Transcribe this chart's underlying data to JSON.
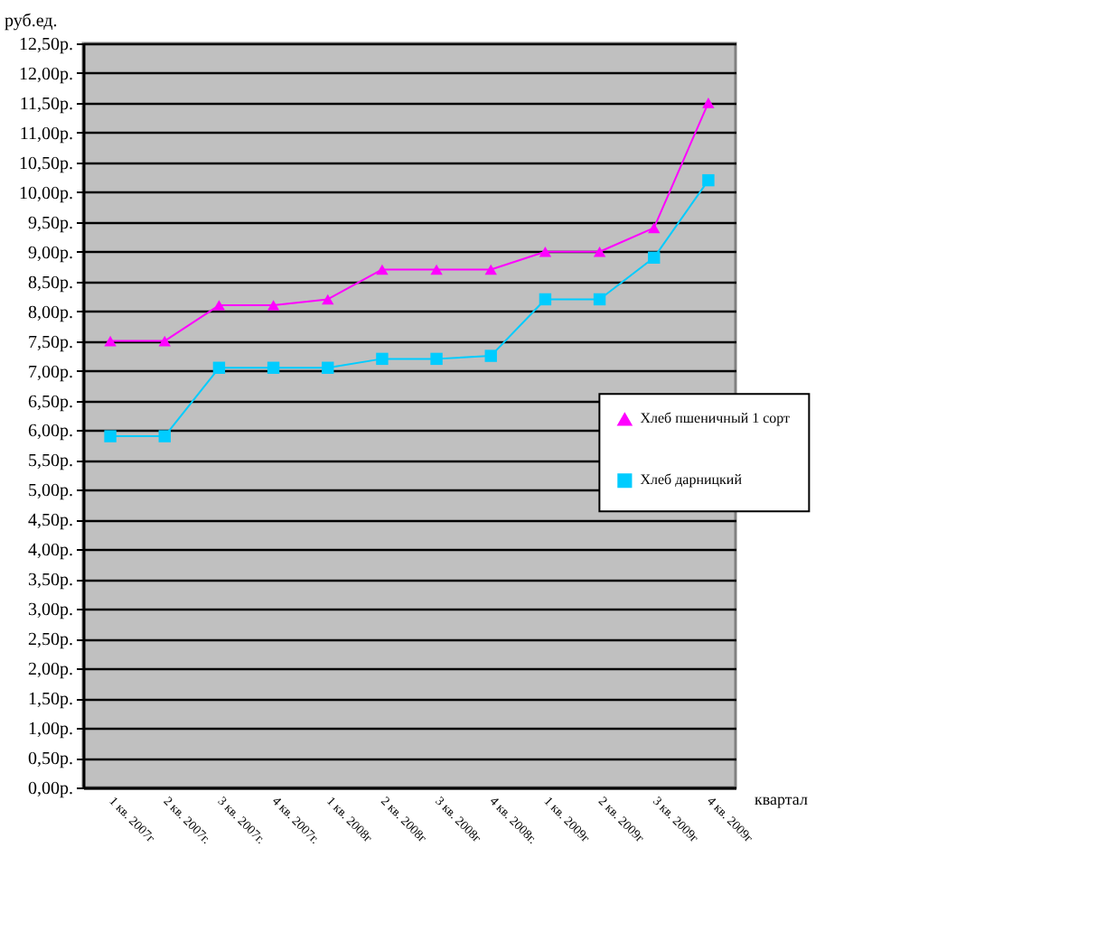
{
  "chart_data": {
    "type": "line",
    "xlabel": "квартал",
    "ylabel": "руб.ед.",
    "categories": [
      "1 кв. 2007г",
      "2 кв. 2007г.",
      "3 кв. 2007г.",
      "4 кв. 2007г.",
      "1 кв. 2008г",
      "2 кв. 2008г",
      "3 кв. 2008г",
      "4 кв. 2008г.",
      "1 кв. 2009г",
      "2 кв. 2009г",
      "3 кв. 2009г",
      "4 кв. 2009г"
    ],
    "series": [
      {
        "name": "Хлеб пшеничный 1 сорт",
        "color": "#ff00ff",
        "marker": "triangle",
        "values": [
          7.5,
          7.5,
          8.1,
          8.1,
          8.2,
          8.7,
          8.7,
          8.7,
          9.0,
          9.0,
          9.4,
          11.5
        ]
      },
      {
        "name": "Хлеб дарницкий",
        "color": "#00ccff",
        "marker": "square",
        "values": [
          5.9,
          5.9,
          7.05,
          7.05,
          7.05,
          7.2,
          7.2,
          7.25,
          8.2,
          8.2,
          8.9,
          10.2
        ]
      }
    ],
    "ylim": [
      0,
      12.5
    ],
    "yticks": [
      {
        "value": 0,
        "label": "0,00р."
      },
      {
        "value": 0.5,
        "label": "0,50р."
      },
      {
        "value": 1,
        "label": "1,00р."
      },
      {
        "value": 1.5,
        "label": "1,50р."
      },
      {
        "value": 2,
        "label": "2,00р."
      },
      {
        "value": 2.5,
        "label": "2,50р."
      },
      {
        "value": 3,
        "label": "3,00р."
      },
      {
        "value": 3.5,
        "label": "3,50р."
      },
      {
        "value": 4,
        "label": "4,00р."
      },
      {
        "value": 4.5,
        "label": "4,50р."
      },
      {
        "value": 5,
        "label": "5,00р."
      },
      {
        "value": 5.5,
        "label": "5,50р."
      },
      {
        "value": 6,
        "label": "6,00р."
      },
      {
        "value": 6.5,
        "label": "6,50р."
      },
      {
        "value": 7,
        "label": "7,00р."
      },
      {
        "value": 7.5,
        "label": "7,50р."
      },
      {
        "value": 8,
        "label": "8,00р."
      },
      {
        "value": 8.5,
        "label": "8,50р."
      },
      {
        "value": 9,
        "label": "9,00р."
      },
      {
        "value": 9.5,
        "label": "9,50р."
      },
      {
        "value": 10,
        "label": "10,00р."
      },
      {
        "value": 10.5,
        "label": "10,50р."
      },
      {
        "value": 11,
        "label": "11,00р."
      },
      {
        "value": 11.5,
        "label": "11,50р."
      },
      {
        "value": 12,
        "label": "12,00р."
      },
      {
        "value": 12.5,
        "label": "12,50р."
      }
    ],
    "grid": "y",
    "legend": "right",
    "line_style": "solid"
  }
}
